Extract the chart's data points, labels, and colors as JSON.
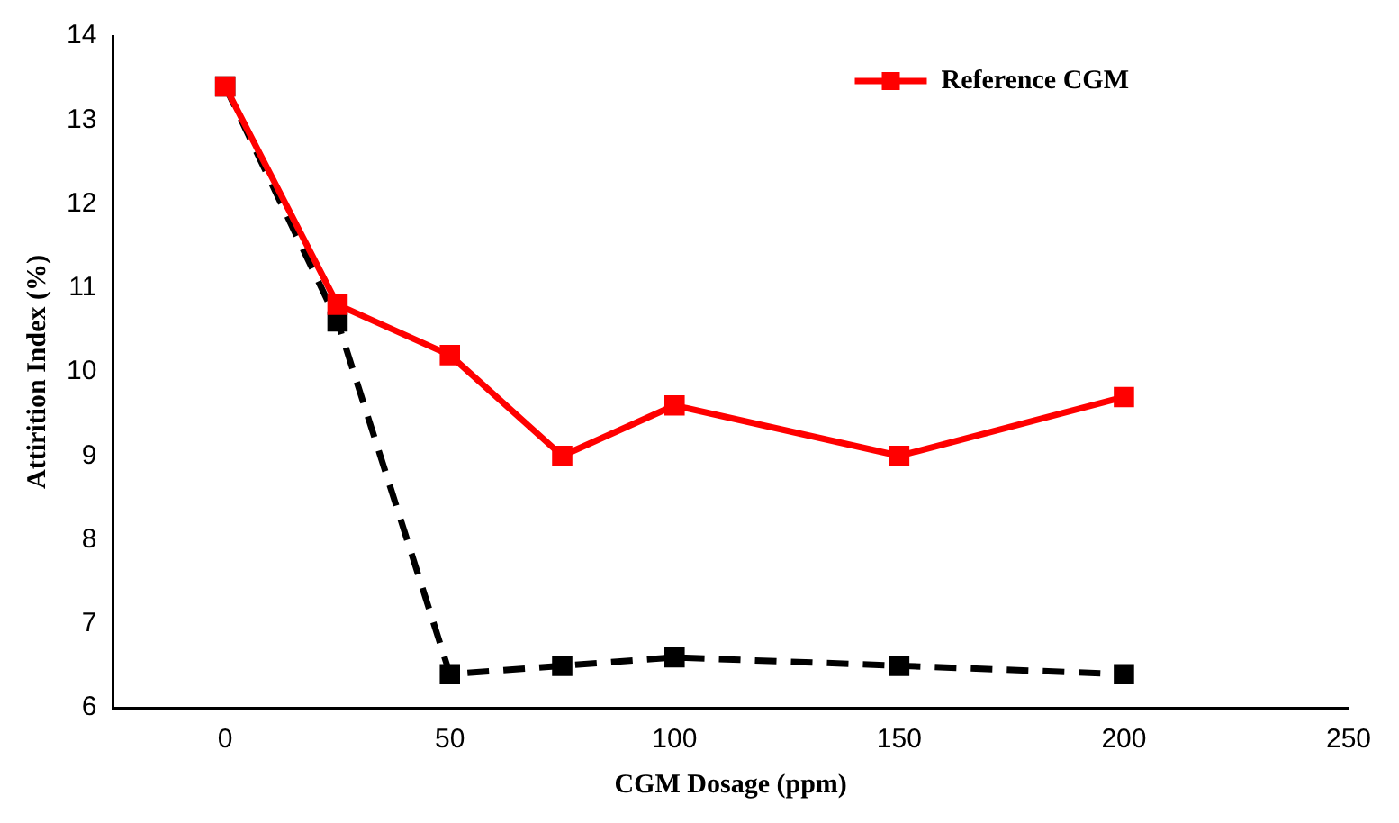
{
  "chart_data": {
    "type": "line",
    "xlabel": "CGM Dosage (ppm)",
    "ylabel": "Attirition Index (%)",
    "x": [
      0,
      25,
      50,
      75,
      100,
      150,
      200
    ],
    "series": [
      {
        "color": "#000000",
        "line_style": "dashed",
        "values": [
          13.4,
          10.6,
          6.4,
          6.5,
          6.6,
          6.5,
          6.4
        ]
      },
      {
        "name": "Reference CGM",
        "color": "#ff0000",
        "line_style": "solid",
        "values": [
          13.4,
          10.8,
          10.2,
          9.0,
          9.6,
          9.0,
          9.7
        ]
      }
    ],
    "xlim": [
      -25,
      250
    ],
    "xticks": [
      0,
      50,
      100,
      150,
      200,
      250
    ],
    "ylim": [
      6,
      14
    ],
    "yticks": [
      6,
      7,
      8,
      9,
      10,
      11,
      12,
      13,
      14
    ],
    "marker": "square",
    "legend": "top right",
    "grid": false
  }
}
